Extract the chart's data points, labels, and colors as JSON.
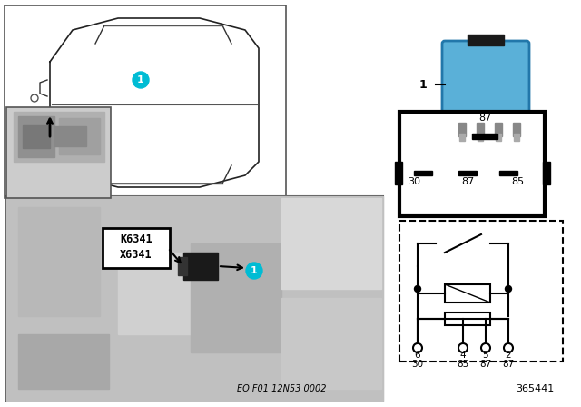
{
  "bg_color": "#ffffff",
  "border_color": "#000000",
  "car_outline_color": "#000000",
  "relay_blue_color": "#4aa8c8",
  "cyan_badge_color": "#00bcd4",
  "badge_text_color": "#ffffff",
  "label_box_bg": "#ffffff",
  "label_K6341": "K6341",
  "label_X6341": "X6341",
  "label_1": "1",
  "part_number": "365441",
  "eo_label": "EO F01 12N53 0002",
  "pin_labels_top": [
    "87"
  ],
  "pin_labels_mid": [
    "30",
    "87",
    "85"
  ],
  "pin_labels_bottom": [
    [
      "6",
      "30"
    ],
    [
      "4",
      "85"
    ],
    [
      "5",
      "87"
    ],
    [
      "2",
      "87"
    ]
  ],
  "title_color": "#000000",
  "photo_bg": "#d8d8d8"
}
